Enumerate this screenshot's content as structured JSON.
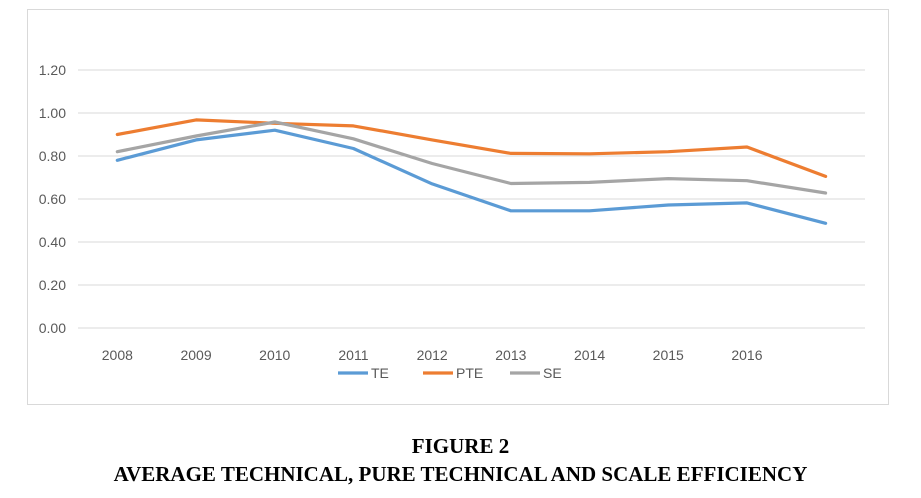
{
  "figure": {
    "label": "FIGURE 2",
    "title": "AVERAGE TECHNICAL, PURE TECHNICAL AND SCALE EFFICIENCY"
  },
  "chart_data": {
    "type": "line",
    "categories": [
      "2008",
      "2009",
      "2010",
      "2011",
      "2012",
      "2013",
      "2014",
      "2015",
      "2016",
      ""
    ],
    "ylim": [
      0,
      1.2
    ],
    "yticks": [
      "0.00",
      "0.20",
      "0.40",
      "0.60",
      "0.80",
      "1.00",
      "1.20"
    ],
    "grid": true,
    "legend_position": "bottom",
    "series": [
      {
        "name": "TE",
        "color": "#5b9bd5",
        "values": [
          0.78,
          0.875,
          0.92,
          0.835,
          0.67,
          0.545,
          0.545,
          0.572,
          0.582,
          0.487
        ]
      },
      {
        "name": "PTE",
        "color": "#ed7d31",
        "values": [
          0.9,
          0.968,
          0.952,
          0.94,
          0.875,
          0.812,
          0.81,
          0.82,
          0.842,
          0.705
        ]
      },
      {
        "name": "SE",
        "color": "#a5a5a5",
        "values": [
          0.82,
          0.893,
          0.958,
          0.88,
          0.765,
          0.672,
          0.677,
          0.695,
          0.685,
          0.628
        ]
      }
    ]
  }
}
